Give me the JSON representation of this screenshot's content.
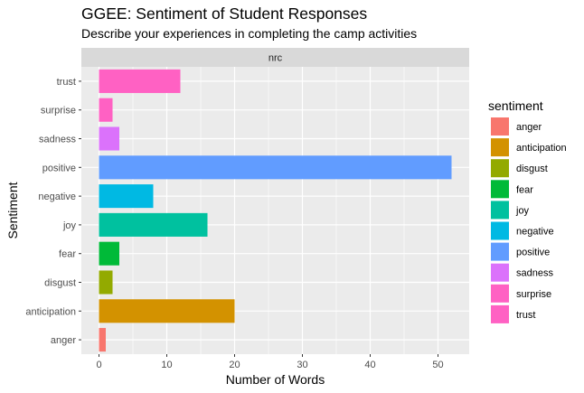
{
  "chart_data": {
    "type": "bar",
    "orientation": "horizontal",
    "title": "GGEE: Sentiment of Student Responses",
    "subtitle": "Describe your experiences in completing the camp activities",
    "facet": "nrc",
    "xlabel": "Number of Words",
    "ylabel": "Sentiment",
    "xlim": [
      -2.6,
      54.6
    ],
    "x_ticks": [
      0,
      10,
      20,
      30,
      40,
      50
    ],
    "grid": true,
    "legend": {
      "title": "sentiment",
      "position": "right"
    },
    "categories": [
      "anger",
      "anticipation",
      "disgust",
      "fear",
      "joy",
      "negative",
      "positive",
      "sadness",
      "surprise",
      "trust"
    ],
    "values": [
      1,
      20,
      2,
      3,
      16,
      8,
      52,
      3,
      2,
      12
    ],
    "colors": {
      "anger": "#F8766D",
      "anticipation": "#D39200",
      "disgust": "#93AA00",
      "fear": "#00BA38",
      "joy": "#00C19F",
      "negative": "#00B9E3",
      "positive": "#619CFF",
      "sadness": "#DB72FB",
      "surprise": "#FF61C3",
      "trust": "#FF61C3"
    }
  }
}
